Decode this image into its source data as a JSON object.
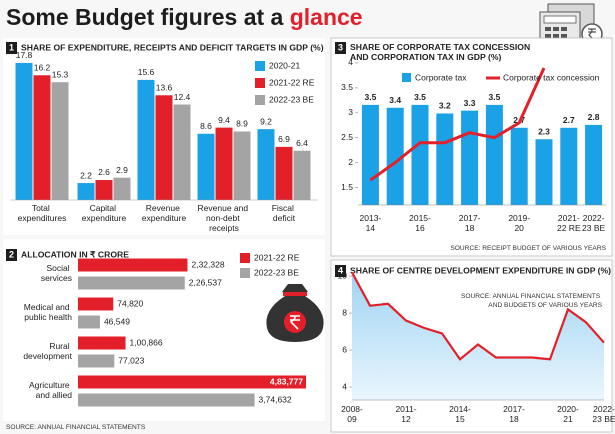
{
  "title": "Some Budget figures at a",
  "title_highlight": "glance",
  "chart_data": [
    {
      "type": "bar",
      "number": "1",
      "title": "SHARE OF EXPENDITURE, RECEIPTS AND DEFICIT TARGETS IN GDP (%)",
      "categories": [
        "Total expenditures",
        "Capital expenditure",
        "Revenue expenditure",
        "Revenue and non-debt receipts",
        "Fiscal deficit"
      ],
      "series": [
        {
          "name": "2020-21",
          "color": "#1ba1e6",
          "values": [
            17.8,
            2.2,
            15.6,
            8.6,
            9.2
          ]
        },
        {
          "name": "2021-22 RE",
          "color": "#e3202a",
          "values": [
            16.2,
            2.6,
            13.6,
            9.4,
            6.9
          ]
        },
        {
          "name": "2022-23 BE",
          "color": "#a4a4a4",
          "values": [
            15.3,
            2.9,
            12.4,
            8.9,
            6.4
          ]
        }
      ]
    },
    {
      "type": "hbar",
      "number": "2",
      "title": "ALLOCATION IN ₹ CRORE",
      "categories": [
        "Social services",
        "Medical and public health",
        "Rural development",
        "Agriculture and allied"
      ],
      "series": [
        {
          "name": "2021-22 RE",
          "color": "#e3202a",
          "values": [
            232328,
            74820,
            100866,
            483777
          ],
          "value_labels": [
            "2,32,328",
            "74,820",
            "1,00,866",
            "4,83,777"
          ]
        },
        {
          "name": "2022-23 BE",
          "color": "#a4a4a4",
          "values": [
            226537,
            46549,
            77023,
            374632
          ],
          "value_labels": [
            "2,26,537",
            "46,549",
            "77,023",
            "3,74,632"
          ]
        }
      ],
      "source": "SOURCE: ANNUAL FINANCIAL STATEMENTS"
    },
    {
      "type": "bar_line",
      "number": "3",
      "title": "SHARE OF CORPORATE TAX CONCESSION AND CORPORATION TAX IN GDP (%)",
      "categories": [
        "2013-14",
        null,
        "2015-16",
        null,
        "2017-18",
        null,
        "2019-20",
        null,
        "2021-22 RE",
        "2022-23 BE"
      ],
      "series": [
        {
          "name": "Corporate tax",
          "color": "#1ba1e6",
          "values": [
            3.5,
            3.4,
            3.5,
            3.2,
            3.3,
            3.5,
            2.7,
            2.3,
            2.7,
            2.8
          ]
        },
        {
          "name": "Corporate tax concession",
          "color": "#e3202a",
          "values": [
            1.65,
            2.0,
            2.4,
            2.4,
            2.6,
            2.5,
            2.8,
            3.9,
            null,
            null
          ]
        }
      ],
      "ylim": [
        1.15,
        4.1
      ],
      "yticks": [
        1.5,
        2,
        2.5,
        3,
        3.5,
        4
      ],
      "source": "SOURCE: RECEIPT BUDGET OF VARIOUS YEARS"
    },
    {
      "type": "area",
      "number": "4",
      "title": "SHARE OF CENTRE DEVELOPMENT EXPENDITURE IN GDP (%)",
      "categories": [
        "2008-09",
        null,
        null,
        "2011-12",
        null,
        null,
        "2014-15",
        null,
        null,
        "2017-18",
        null,
        null,
        "2020-21",
        null,
        "2022-23 BE"
      ],
      "values": [
        10.2,
        8.4,
        8.5,
        7.6,
        7.2,
        6.9,
        5.5,
        6.3,
        5.6,
        5.6,
        5.6,
        5.5,
        8.2,
        7.5,
        6.4
      ],
      "color": "#e3202a",
      "fill": "#b9e0f5",
      "ylim": [
        3.3,
        10.6
      ],
      "yticks": [
        4,
        6,
        8,
        10
      ],
      "source": "SOURCE: ANNUAL FINANCIAL STATEMENTS AND BUDGETS OF VARIOUS YEARS"
    }
  ]
}
